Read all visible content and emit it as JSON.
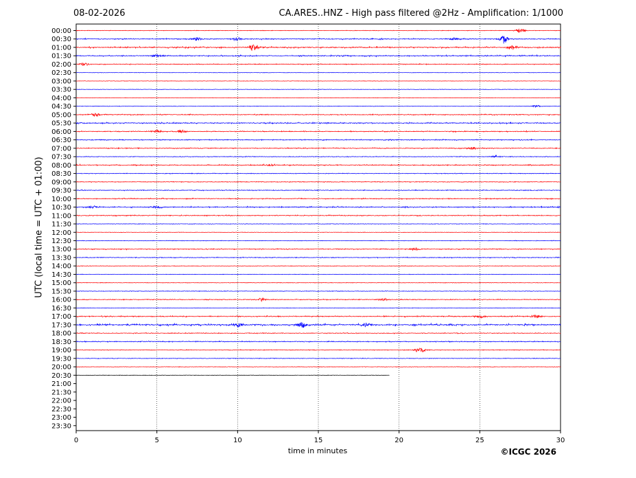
{
  "header": {
    "date": "08-02-2026",
    "title": "CA.ARES..HNZ - High pass filtered @2Hz - Amplification: 1/1000"
  },
  "footer": {
    "copyright": "©ICGC 2026"
  },
  "colors": {
    "odd_rows": "#ff0000",
    "even_rows": "#0000ff",
    "gridline": "#000000"
  },
  "chart_data": {
    "type": "line",
    "title": "CA.ARES..HNZ - High pass filtered @2Hz - Amplification: 1/1000",
    "xlabel": "time in minutes",
    "ylabel": "UTC (local time = UTC + 01:00)",
    "xlim": [
      0,
      30
    ],
    "x_ticks": [
      0,
      5,
      10,
      15,
      20,
      25,
      30
    ],
    "y_ticks": [
      "00:00",
      "00:30",
      "01:00",
      "01:30",
      "02:00",
      "02:30",
      "03:00",
      "03:30",
      "04:00",
      "04:30",
      "05:00",
      "05:30",
      "06:00",
      "06:30",
      "07:00",
      "07:30",
      "08:00",
      "08:30",
      "09:00",
      "09:30",
      "10:00",
      "10:30",
      "11:00",
      "11:30",
      "12:00",
      "12:30",
      "13:00",
      "13:30",
      "14:00",
      "14:30",
      "15:00",
      "15:30",
      "16:00",
      "16:30",
      "17:00",
      "17:30",
      "18:00",
      "18:30",
      "19:00",
      "19:30",
      "20:00",
      "20:30",
      "21:00",
      "21:30",
      "22:00",
      "22:30",
      "23:00",
      "23:30"
    ],
    "vertical_gridlines": [
      5,
      10,
      15,
      20,
      25
    ],
    "grid_style": "dotted",
    "traces": [
      {
        "row": "00:00",
        "color": "#ff0000",
        "end_minute": 30,
        "activity": 0.15,
        "bursts": [
          {
            "minute": 27.5,
            "amp": 2.5
          }
        ]
      },
      {
        "row": "00:30",
        "color": "#0000ff",
        "end_minute": 30,
        "activity": 0.6,
        "bursts": [
          {
            "minute": 7.5,
            "amp": 2
          },
          {
            "minute": 10,
            "amp": 2
          },
          {
            "minute": 23.5,
            "amp": 2
          },
          {
            "minute": 26.5,
            "amp": 5
          }
        ]
      },
      {
        "row": "01:00",
        "color": "#ff0000",
        "end_minute": 30,
        "activity": 0.8,
        "bursts": [
          {
            "minute": 11,
            "amp": 4
          },
          {
            "minute": 27,
            "amp": 3
          }
        ]
      },
      {
        "row": "01:30",
        "color": "#0000ff",
        "end_minute": 30,
        "activity": 0.7,
        "bursts": [
          {
            "minute": 5,
            "amp": 2
          }
        ]
      },
      {
        "row": "02:00",
        "color": "#ff0000",
        "end_minute": 30,
        "activity": 0.4,
        "bursts": [
          {
            "minute": 0.5,
            "amp": 2
          }
        ]
      },
      {
        "row": "02:30",
        "color": "#0000ff",
        "end_minute": 30,
        "activity": 0.05,
        "bursts": []
      },
      {
        "row": "03:00",
        "color": "#ff0000",
        "end_minute": 30,
        "activity": 0.05,
        "bursts": []
      },
      {
        "row": "03:30",
        "color": "#0000ff",
        "end_minute": 30,
        "activity": 0.05,
        "bursts": []
      },
      {
        "row": "04:00",
        "color": "#ff0000",
        "end_minute": 30,
        "activity": 0.05,
        "bursts": []
      },
      {
        "row": "04:30",
        "color": "#0000ff",
        "end_minute": 30,
        "activity": 0.1,
        "bursts": [
          {
            "minute": 28.5,
            "amp": 1.2
          }
        ]
      },
      {
        "row": "05:00",
        "color": "#ff0000",
        "end_minute": 30,
        "activity": 0.5,
        "bursts": [
          {
            "minute": 1.2,
            "amp": 2.5
          }
        ]
      },
      {
        "row": "05:30",
        "color": "#0000ff",
        "end_minute": 30,
        "activity": 0.7,
        "bursts": []
      },
      {
        "row": "06:00",
        "color": "#ff0000",
        "end_minute": 30,
        "activity": 0.5,
        "bursts": [
          {
            "minute": 5,
            "amp": 2
          },
          {
            "minute": 6.5,
            "amp": 2
          }
        ]
      },
      {
        "row": "06:30",
        "color": "#0000ff",
        "end_minute": 30,
        "activity": 0.5,
        "bursts": []
      },
      {
        "row": "07:00",
        "color": "#ff0000",
        "end_minute": 30,
        "activity": 0.5,
        "bursts": [
          {
            "minute": 24.5,
            "amp": 2
          }
        ]
      },
      {
        "row": "07:30",
        "color": "#0000ff",
        "end_minute": 30,
        "activity": 0.3,
        "bursts": [
          {
            "minute": 26,
            "amp": 1.5
          }
        ]
      },
      {
        "row": "08:00",
        "color": "#ff0000",
        "end_minute": 30,
        "activity": 0.6,
        "bursts": [
          {
            "minute": 12,
            "amp": 1.5
          }
        ]
      },
      {
        "row": "08:30",
        "color": "#0000ff",
        "end_minute": 30,
        "activity": 0.3,
        "bursts": []
      },
      {
        "row": "09:00",
        "color": "#ff0000",
        "end_minute": 30,
        "activity": 0.3,
        "bursts": []
      },
      {
        "row": "09:30",
        "color": "#0000ff",
        "end_minute": 30,
        "activity": 0.4,
        "bursts": []
      },
      {
        "row": "10:00",
        "color": "#ff0000",
        "end_minute": 30,
        "activity": 0.5,
        "bursts": []
      },
      {
        "row": "10:30",
        "color": "#0000ff",
        "end_minute": 30,
        "activity": 0.7,
        "bursts": [
          {
            "minute": 1,
            "amp": 1.5
          },
          {
            "minute": 5,
            "amp": 1.5
          }
        ]
      },
      {
        "row": "11:00",
        "color": "#ff0000",
        "end_minute": 30,
        "activity": 0.5,
        "bursts": []
      },
      {
        "row": "11:30",
        "color": "#0000ff",
        "end_minute": 30,
        "activity": 0.15,
        "bursts": []
      },
      {
        "row": "12:00",
        "color": "#ff0000",
        "end_minute": 30,
        "activity": 0.1,
        "bursts": []
      },
      {
        "row": "12:30",
        "color": "#0000ff",
        "end_minute": 30,
        "activity": 0.2,
        "bursts": []
      },
      {
        "row": "13:00",
        "color": "#ff0000",
        "end_minute": 30,
        "activity": 0.5,
        "bursts": [
          {
            "minute": 21,
            "amp": 1.5
          }
        ]
      },
      {
        "row": "13:30",
        "color": "#0000ff",
        "end_minute": 30,
        "activity": 0.4,
        "bursts": []
      },
      {
        "row": "14:00",
        "color": "#ff0000",
        "end_minute": 30,
        "activity": 0.15,
        "bursts": []
      },
      {
        "row": "14:30",
        "color": "#0000ff",
        "end_minute": 30,
        "activity": 0.1,
        "bursts": []
      },
      {
        "row": "15:00",
        "color": "#ff0000",
        "end_minute": 30,
        "activity": 0.15,
        "bursts": []
      },
      {
        "row": "15:30",
        "color": "#0000ff",
        "end_minute": 30,
        "activity": 0.2,
        "bursts": []
      },
      {
        "row": "16:00",
        "color": "#ff0000",
        "end_minute": 30,
        "activity": 0.4,
        "bursts": [
          {
            "minute": 11.5,
            "amp": 2
          },
          {
            "minute": 19,
            "amp": 1.5
          }
        ]
      },
      {
        "row": "16:30",
        "color": "#0000ff",
        "end_minute": 30,
        "activity": 0.1,
        "bursts": []
      },
      {
        "row": "17:00",
        "color": "#ff0000",
        "end_minute": 30,
        "activity": 0.6,
        "bursts": [
          {
            "minute": 25,
            "amp": 2
          },
          {
            "minute": 28.5,
            "amp": 2.5
          }
        ]
      },
      {
        "row": "17:30",
        "color": "#0000ff",
        "end_minute": 30,
        "activity": 1.2,
        "bursts": [
          {
            "minute": 10,
            "amp": 2.5
          },
          {
            "minute": 14,
            "amp": 4
          },
          {
            "minute": 18,
            "amp": 2
          }
        ]
      },
      {
        "row": "18:00",
        "color": "#ff0000",
        "end_minute": 30,
        "activity": 0.4,
        "bursts": []
      },
      {
        "row": "18:30",
        "color": "#0000ff",
        "end_minute": 30,
        "activity": 0.5,
        "bursts": []
      },
      {
        "row": "19:00",
        "color": "#ff0000",
        "end_minute": 30,
        "activity": 0.3,
        "bursts": [
          {
            "minute": 21.3,
            "amp": 4
          }
        ]
      },
      {
        "row": "19:30",
        "color": "#0000ff",
        "end_minute": 30,
        "activity": 0.2,
        "bursts": []
      },
      {
        "row": "20:00",
        "color": "#ff0000",
        "end_minute": 30,
        "activity": 0.1,
        "bursts": []
      },
      {
        "row": "20:30",
        "color": "#000000",
        "end_minute": 19.4,
        "activity": 0.05,
        "bursts": []
      }
    ]
  }
}
